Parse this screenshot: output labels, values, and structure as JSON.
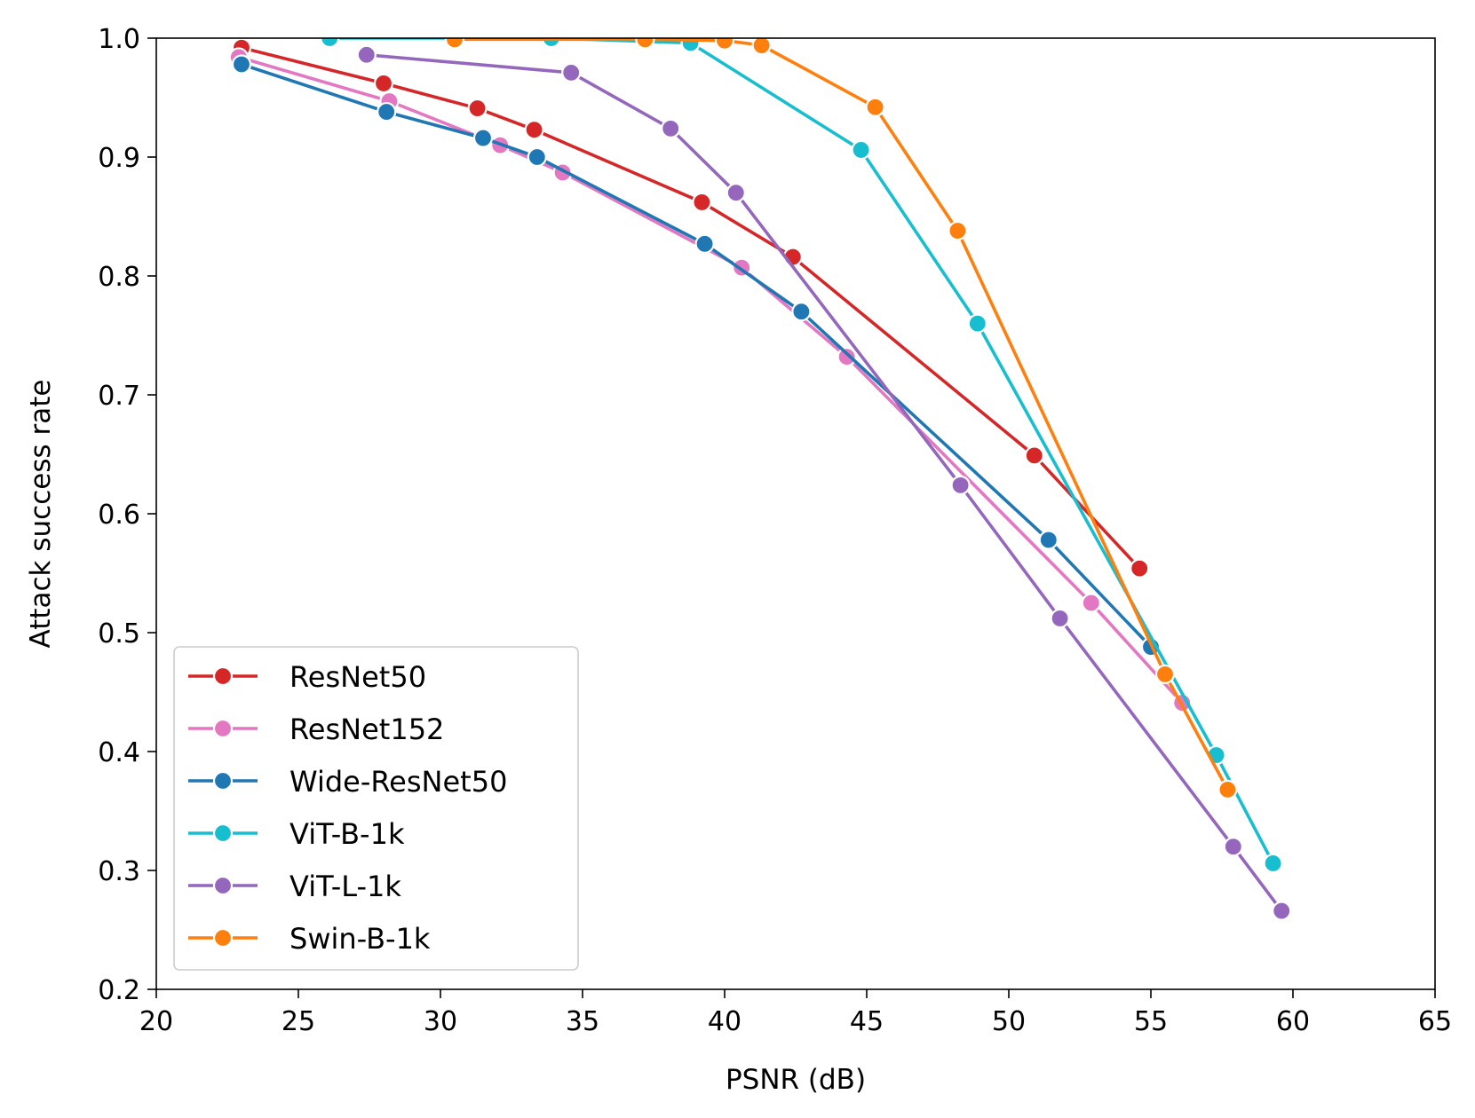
{
  "chart_data": {
    "type": "line",
    "title": "",
    "xlabel": "PSNR (dB)",
    "ylabel": "Attack success rate",
    "xlim": [
      20,
      65
    ],
    "ylim": [
      0.2,
      1.0
    ],
    "x_ticks": [
      "20",
      "25",
      "30",
      "35",
      "40",
      "45",
      "50",
      "55",
      "60",
      "65"
    ],
    "y_ticks": [
      "0.2",
      "0.3",
      "0.4",
      "0.5",
      "0.6",
      "0.7",
      "0.8",
      "0.9",
      "1.0"
    ],
    "grid": false,
    "legend_position": "lower-left",
    "marker": "circle",
    "series": [
      {
        "name": "ResNet50",
        "color": "#d62728",
        "x": [
          23.0,
          28.0,
          31.3,
          33.3,
          39.2,
          42.4,
          50.9,
          54.6
        ],
        "y": [
          0.992,
          0.962,
          0.941,
          0.923,
          0.862,
          0.816,
          0.649,
          0.554
        ]
      },
      {
        "name": "ResNet152",
        "color": "#e377c2",
        "x": [
          22.9,
          28.2,
          32.1,
          34.3,
          40.6,
          44.3,
          52.9,
          56.1
        ],
        "y": [
          0.984,
          0.947,
          0.91,
          0.887,
          0.807,
          0.732,
          0.525,
          0.441
        ]
      },
      {
        "name": "Wide-ResNet50",
        "color": "#1f77b4",
        "x": [
          23.0,
          28.1,
          31.5,
          33.4,
          39.3,
          42.7,
          51.4,
          55.0
        ],
        "y": [
          0.978,
          0.938,
          0.916,
          0.9,
          0.827,
          0.77,
          0.578,
          0.488
        ]
      },
      {
        "name": "ViT-B-1k",
        "color": "#17becf",
        "x": [
          26.1,
          33.9,
          38.8,
          44.8,
          48.9,
          57.3,
          59.3
        ],
        "y": [
          1.0,
          1.0,
          0.996,
          0.906,
          0.76,
          0.397,
          0.306
        ]
      },
      {
        "name": "ViT-L-1k",
        "color": "#9467bd",
        "x": [
          27.4,
          34.6,
          38.1,
          40.4,
          48.3,
          51.8,
          57.9,
          59.6
        ],
        "y": [
          0.986,
          0.971,
          0.924,
          0.87,
          0.624,
          0.512,
          0.32,
          0.266
        ]
      },
      {
        "name": "Swin-B-1k",
        "color": "#ff7f0e",
        "x": [
          30.5,
          37.2,
          40.0,
          41.3,
          45.3,
          48.2,
          55.5,
          57.7
        ],
        "y": [
          0.999,
          0.999,
          0.998,
          0.994,
          0.942,
          0.838,
          0.465,
          0.368
        ]
      }
    ]
  }
}
